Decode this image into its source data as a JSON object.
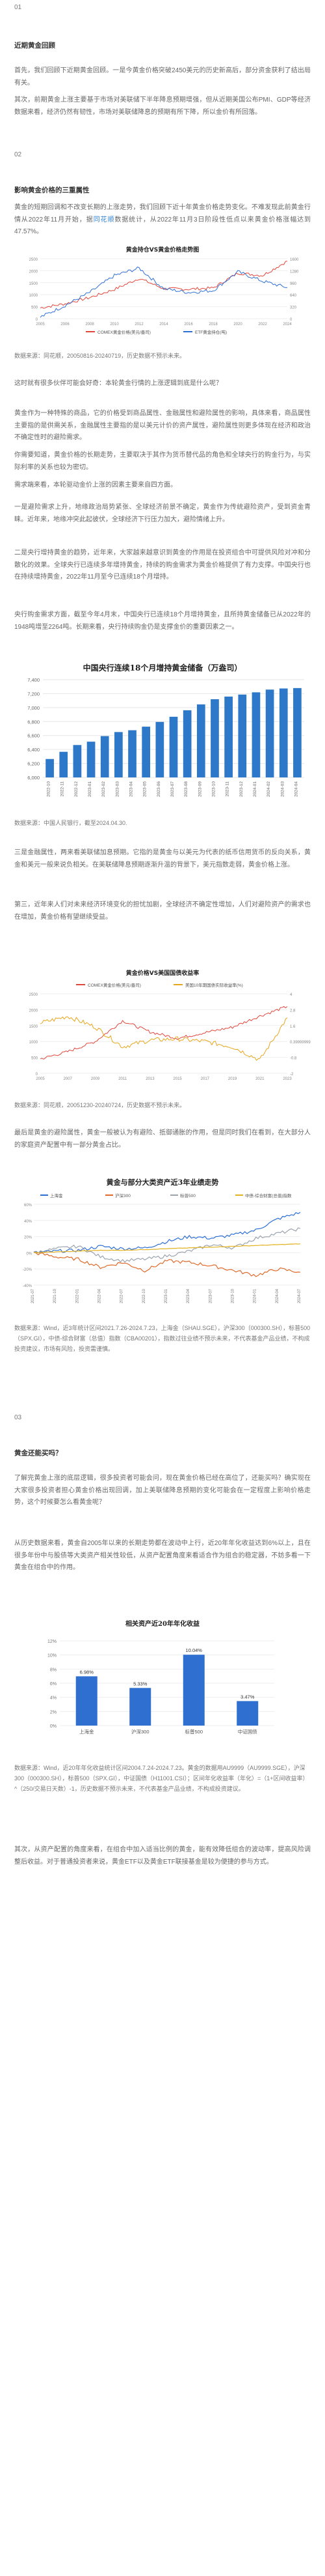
{
  "sec1": {
    "num": "01",
    "heading": "近期黄金回顾"
  },
  "p1": "首先，我们回顾下近期黄金回顾。一是今黄金价格突破2450美元的历史新高后，部分资金获利了结出局有关。",
  "p2": "其次，前期黄金上涨主要基于市场对美联储下半年降息预期增强，但从近期美国公布PMI、GDP等经济数据来看，经济仍然有韧性，市场对美联储降息的预期有所下降，所以金价有所回落。",
  "sec2": {
    "num": "02",
    "heading": "影响黄金价格的三重属性"
  },
  "p3a": "黄金的短期回调和不改变长期的上涨走势，我们回顾下近十年黄金价格走势变化。不难发现此前黄金行情从2022年11月开始，据",
  "p3link": "同花顺",
  "p3b": "数据统计，从2022年11月3日阶段性低点以来黄金价格涨幅达到47.57%。",
  "chart1": {
    "title": "黄金持仓VS黄金价格走势图",
    "legend": [
      "COMEX黄金价格(美元/盎司)",
      "ETF黄金持仓(吨)"
    ],
    "x_labels": [
      "2005",
      "2006",
      "2008",
      "2010",
      "2012",
      "2014",
      "2016",
      "2018",
      "2020",
      "2022",
      "2024"
    ]
  },
  "src1": "数据来源：同花顺，20050816-20240719，历史数据不预示未来。",
  "p4": "这时就有很多伙伴可能会好奇：本轮黄金行情的上涨逻辑到底是什么呢？",
  "p5": "黄金作为一种特殊的商品，它的价格受到商品属性、金融属性和避险属性的影响，具体来看，商品属性主要指的是供需关系，金融属性主要指的是以美元计价的资产属性，避险属性则更多体现在经济和政治不确定性时的避险需求。",
  "p6": "你需要知道，黄金价格的长期走势，主要取决于其作为货币替代品的角色和全球央行的购金行为，与实际利率的关系也较为密切。",
  "p7": "需求端来看，本轮驱动金价上涨的因素主要来自四方面。",
  "p8": "一是避险需求上升，地缘政治局势紧张、全球经济前景不确定，黄金作为传统避险资产，受到资金青睐。近年来，地缘冲突此起彼伏，全球经济下行压力加大，避险情绪上升。",
  "p9": "二是央行增持黄金的趋势，近年来，大家越来越意识到黄金的作用是在投资组合中可提供风险对冲和分散化的效果。全球央行已连续多年增持黄金，持续的购金需求为黄金价格提供了有力支撑。中国央行也在持续增持黄金，2022年11月至今已连续18个月增持。",
  "p10": "央行购金需求方面，截至今年4月末，中国央行已连续18个月增持黄金，且所持黄金储备已从2022年的1948吨增至2264吨。长期来看，央行持续购金仍是支撑金价的重要因素之一。",
  "chart2": {
    "title": "中国央行连续18个月增持黄金储备（万盎司）",
    "categories": [
      "2022-10",
      "2022-11",
      "2022-12",
      "2023-01",
      "2023-02",
      "2023-03",
      "2023-04",
      "2023-05",
      "2023-06",
      "2023-07",
      "2023-08",
      "2023-09",
      "2023-10",
      "2023-11",
      "2023-12",
      "2024-01",
      "2024-02",
      "2024-03",
      "2024-04"
    ],
    "y_ticks": [
      "6,000",
      "6,200",
      "6,400",
      "6,600",
      "6,800",
      "7,000",
      "7,200",
      "7,400"
    ]
  },
  "chart_data": [
    {
      "type": "line",
      "title": "黄金持仓VS黄金价格走势图",
      "x": [
        "2005",
        "2006",
        "2008",
        "2010",
        "2012",
        "2014",
        "2016",
        "2018",
        "2020",
        "2022",
        "2024"
      ],
      "series": [
        {
          "name": "COMEX黄金价格(美元/盎司)",
          "values": [
            450,
            620,
            880,
            1220,
            1680,
            1250,
            1230,
            1280,
            1900,
            1800,
            2400
          ]
        },
        {
          "name": "ETF黄金持仓(吨)",
          "values": [
            40,
            350,
            700,
            1150,
            1350,
            800,
            700,
            750,
            1250,
            1000,
            830
          ]
        }
      ],
      "legend": "bottom"
    },
    {
      "type": "bar",
      "title": "中国央行连续18个月增持黄金储备（万盎司）",
      "categories": [
        "2022-10",
        "2022-11",
        "2022-12",
        "2023-01",
        "2023-02",
        "2023-03",
        "2023-04",
        "2023-05",
        "2023-06",
        "2023-07",
        "2023-08",
        "2023-09",
        "2023-10",
        "2023-11",
        "2023-12",
        "2024-01",
        "2024-02",
        "2024-03",
        "2024-04"
      ],
      "values": [
        6264,
        6367,
        6464,
        6512,
        6592,
        6650,
        6676,
        6727,
        6795,
        6869,
        6962,
        7046,
        7120,
        7158,
        7187,
        7219,
        7258,
        7274,
        7280
      ],
      "ylim": [
        6000,
        7400
      ]
    },
    {
      "type": "line",
      "title": "黄金价格VS美国国债收益率",
      "x": [
        "2005",
        "2007",
        "2009",
        "2011",
        "2013",
        "2015",
        "2017",
        "2019",
        "2021",
        "2023"
      ],
      "series": [
        {
          "name": "COMEX黄金价格(美元/盎司)",
          "values": [
            450,
            680,
            1000,
            1650,
            1300,
            1100,
            1280,
            1450,
            1800,
            2100
          ]
        },
        {
          "name": "美国10年期国债实际收益率(%)",
          "values": [
            1.8,
            2.3,
            1.5,
            0.0,
            0.5,
            0.6,
            0.4,
            0.0,
            -1.0,
            2.2
          ]
        }
      ],
      "legend": "top"
    },
    {
      "type": "line",
      "title": "黄金与部分大类资产近3年业绩走势",
      "x": [
        "2021-07",
        "2021-10",
        "2022-01",
        "2022-04",
        "2022-07",
        "2022-10",
        "2023-01",
        "2023-04",
        "2023-07",
        "2023-10",
        "2024-01",
        "2024-04",
        "2024-07"
      ],
      "series": [
        {
          "name": "上海金",
          "values": [
            0,
            2,
            3,
            8,
            5,
            6,
            14,
            20,
            18,
            22,
            28,
            42,
            50
          ]
        },
        {
          "name": "沪深300",
          "values": [
            0,
            -5,
            -8,
            -18,
            -12,
            -22,
            -10,
            -12,
            -16,
            -22,
            -28,
            -20,
            -24
          ]
        },
        {
          "name": "标普500",
          "values": [
            0,
            5,
            8,
            -5,
            -10,
            -8,
            -4,
            2,
            10,
            6,
            18,
            24,
            30
          ]
        },
        {
          "name": "中债-综合财富(总值)指数",
          "values": [
            0,
            1,
            2,
            3,
            3,
            4,
            5,
            6,
            7,
            8,
            9,
            10,
            11
          ]
        }
      ]
    },
    {
      "type": "bar",
      "title": "相关资产近20年年化收益",
      "categories": [
        "上海金",
        "沪深300",
        "标普500",
        "中证国债"
      ],
      "values": [
        6.98,
        5.33,
        10.04,
        3.47
      ]
    }
  ],
  "src2": "数据来源：中国人民银行，截至2024.04.30.",
  "p11": "三是金融属性，两来看美联储加息预期。它指的是黄金与以美元为代表的纸币信用货币的反向关系，黄金和美元一般来说负相关。在美联储降息预期逐渐升温的背景下，美元指数走弱，黄金价格上涨。",
  "p12": "第三，近年来人们对未来经济环境变化的担忧加剧，全球经济不确定性增加，人们对避险资产的需求也在增加，黄金价格有望继续受益。",
  "chart3": {
    "title": "黄金价格VS美国国债收益率",
    "legend": [
      "COMEX黄金价格(美元/盎司)",
      "美国10年期国债实际收益率(%)"
    ],
    "x_labels": [
      "2005",
      "2007",
      "2009",
      "2011",
      "2013",
      "2015",
      "2017",
      "2019",
      "2021",
      "2023"
    ]
  },
  "src3": "数据来源：同花顺，20051230-20240724，历史数据不预示未来。",
  "p13": "最后是黄金的避险属性，黄金一般被认为有避险、抵御通胀的作用，但是同时我们在看到，在大部分人的家庭资产配置中有一部分黄金占比。",
  "chart4": {
    "title": "黄金与部分大类资产近3年业绩走势",
    "legend": [
      "上海金",
      "沪深300",
      "标普500",
      "中债-综合财富(总值)指数"
    ],
    "x_labels": [
      "2021-07",
      "2021-10",
      "2022-01",
      "2022-04",
      "2022-07",
      "2022-10",
      "2023-01",
      "2023-04",
      "2023-07",
      "2023-10",
      "2024-01",
      "2024-04",
      "2024-07"
    ]
  },
  "src4": "数据来源：Wind，近3年统计区间2021.7.26-2024.7.23，上海金（SHAU.SGE），沪深300（000300.SH），标普500（SPX.GI），中债-综合财富（总值）指数（CBA00201），指数过往业绩不预示未来，不代表基金产品业绩，不构成投资建议，市场有风险，投资需谨慎。",
  "sec3": {
    "num": "03",
    "heading": "黄金还能买吗？"
  },
  "p14": "了解完黄金上涨的底层逻辑，很多投资者可能会问，现在黄金价格已经在高位了，还能买吗？确实现在大家很多投资者担心黄金价格出现回调，加上美联储降息预期的变化可能会在一定程度上影响价格走势，这个时候要怎么看黄金呢？",
  "p15": "从历史数据来看，黄金自2005年以来的长期走势都在波动中上行，近20年年化收益达到6%以上，且在很多年份中与股债等大类资产相关性较低，从资产配置角度来看适合作为组合的稳定器，不妨多看一下黄金在组合中的作用。",
  "chart5": {
    "title": "相关资产近20年年化收益",
    "categories": [
      "上海金",
      "沪深300",
      "标普500",
      "中证国债"
    ],
    "value_labels": [
      "6.98%",
      "5.33%",
      "10.04%",
      "3.47%"
    ]
  },
  "src5": "数据来源：Wind，近20年年化收益统计区间2004.7.24-2024.7.23。黄金的数据用AU9999（AU9999.SGE），沪深300（000300.SH），标普500（SPX.GI），中证国债（H11001.CSI）；区间年化收益率（年化）=（1+区间收益率）^（250/交易日天数）-1，历史数据不预示未来，不代表基金产品业绩，不构成投资建议。",
  "p16": "其次，从资产配置的角度来看，在组合中加入适当比例的黄金，能有效降低组合的波动率，提高风险调整后收益。对于普通投资者来说，黄金ETF以及黄金ETF联接基金是较为便捷的参与方式。"
}
